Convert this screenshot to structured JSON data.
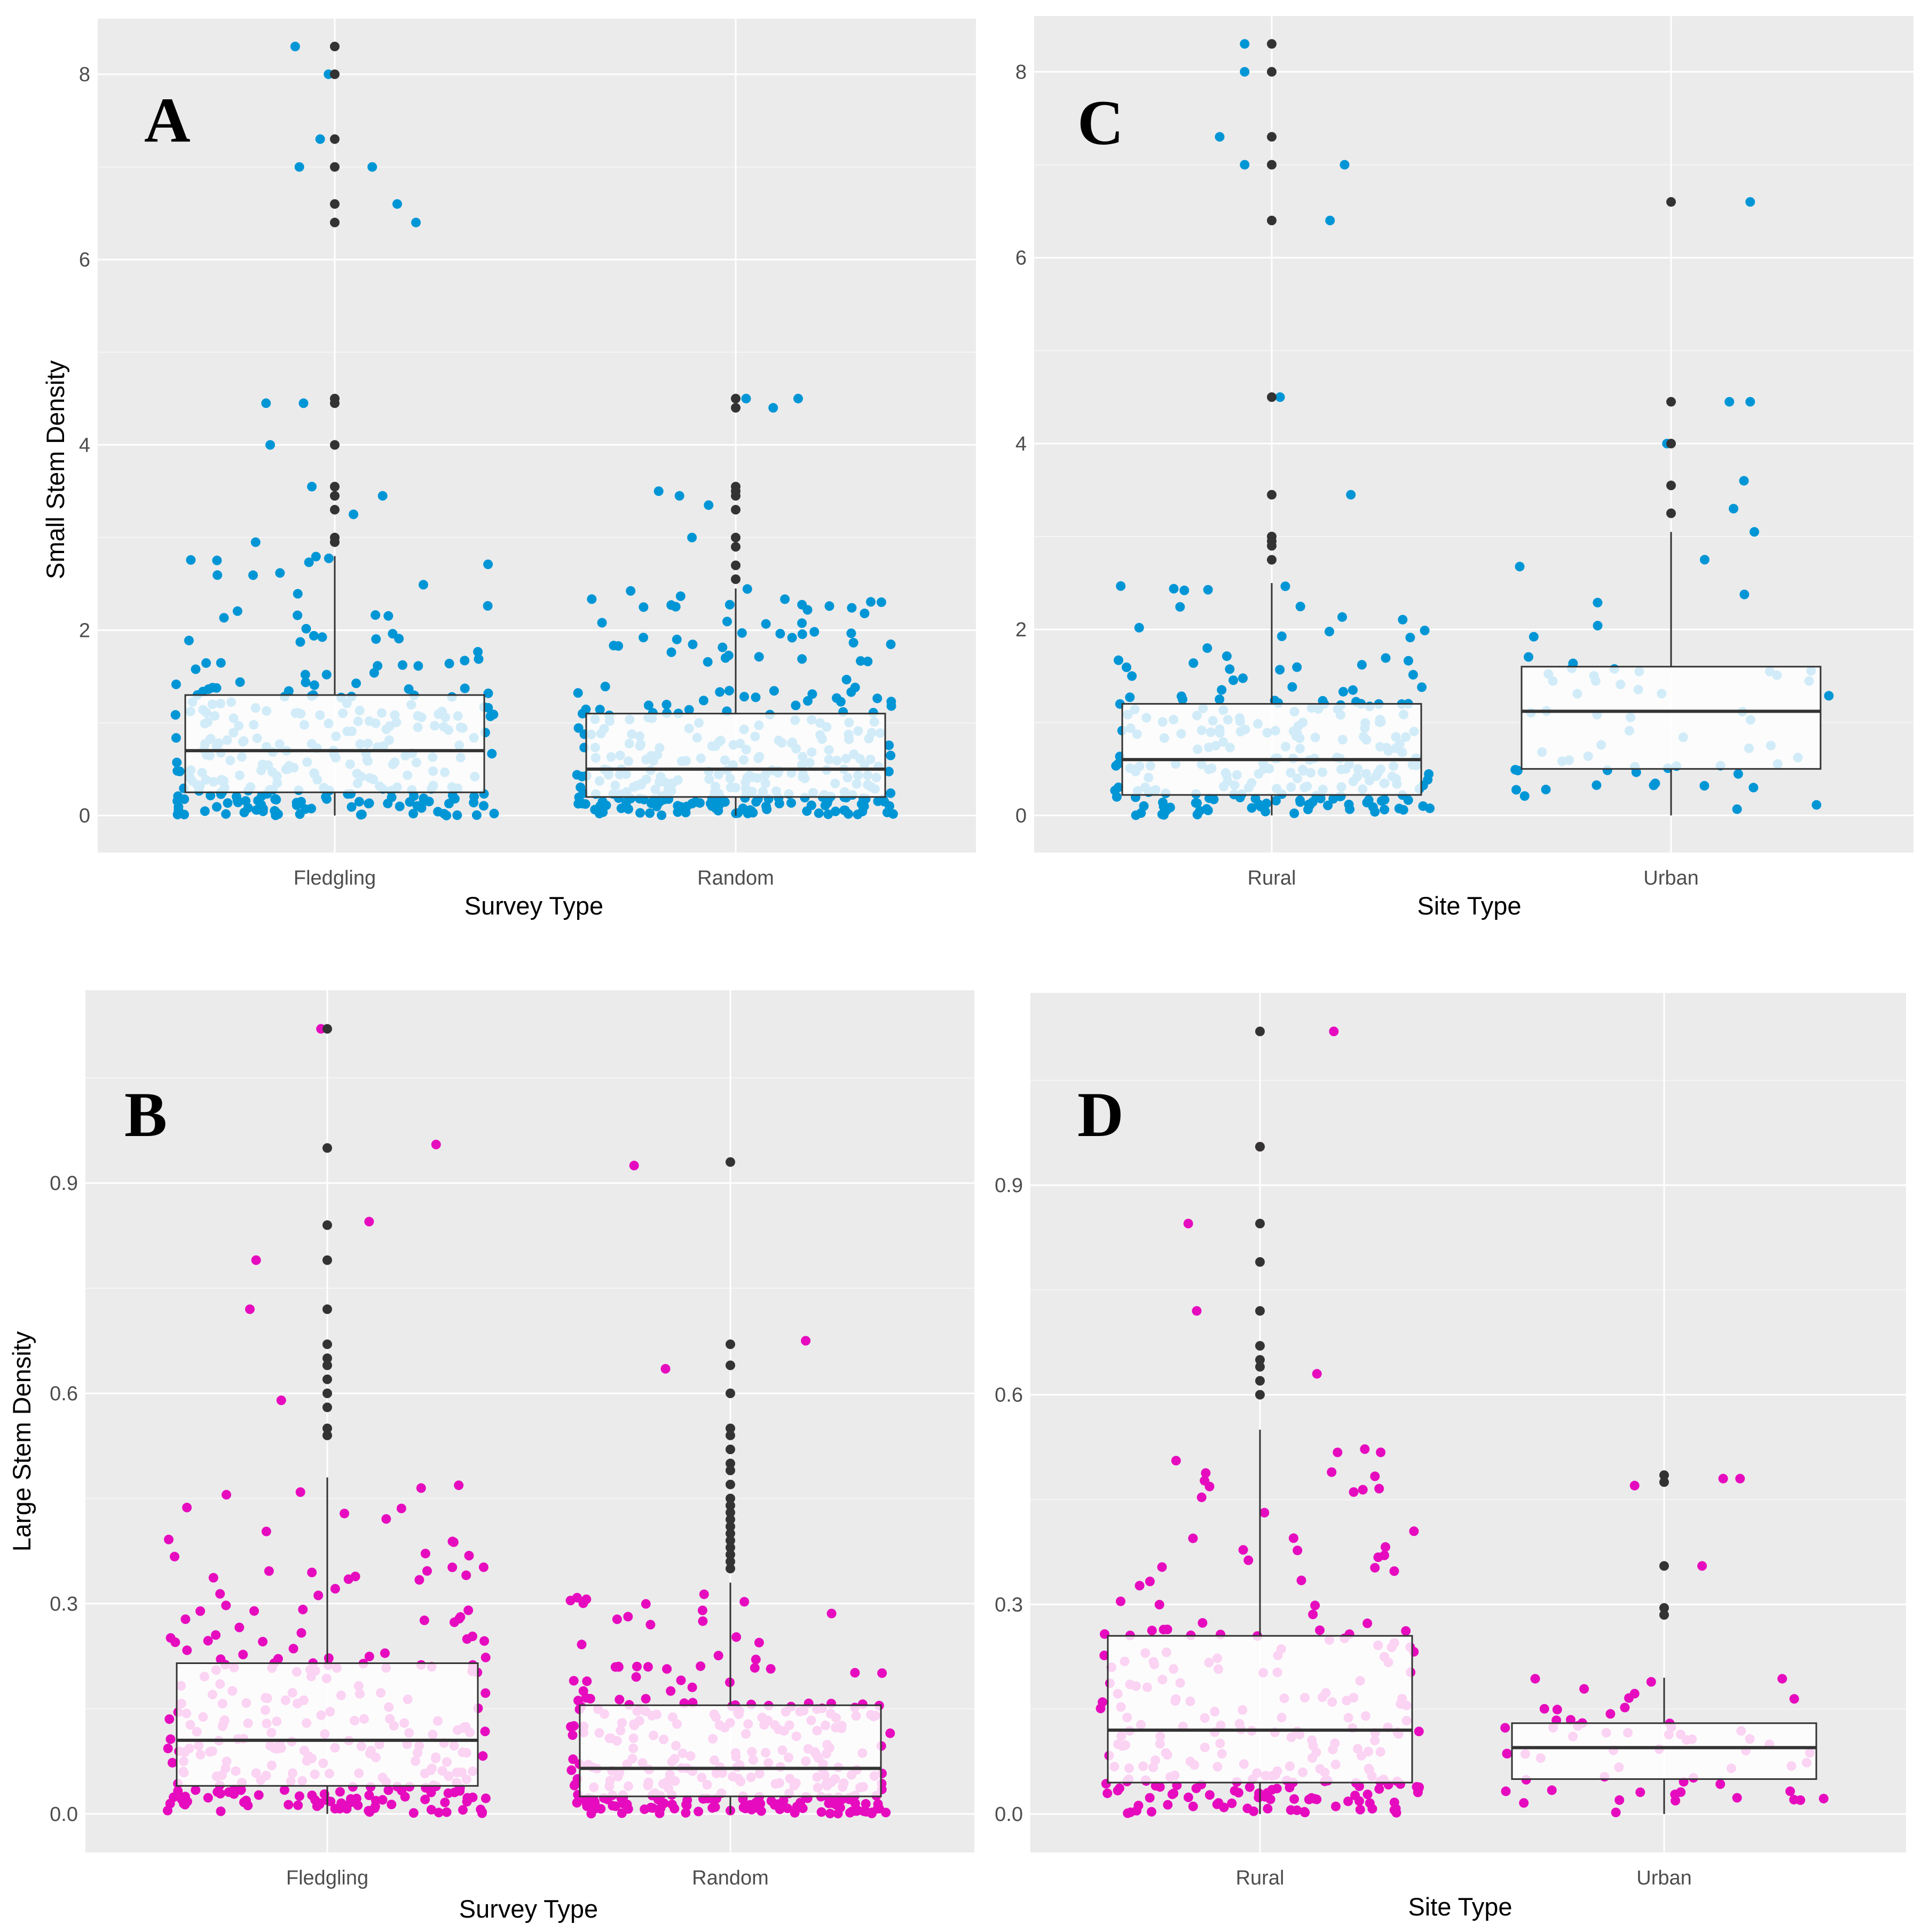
{
  "colors": {
    "panel_bg": "#EBEBEB",
    "grid_major": "#FFFFFF",
    "grid_minor": "#F5F5F5",
    "small_stem_points": "#0096D6",
    "large_stem_points": "#E60BBE",
    "outlier_points": "#333333",
    "box_fill": "#FFFFFF",
    "box_line": "#333333"
  },
  "chart_data": [
    {
      "panel": "A",
      "type": "boxplot_with_jitter",
      "xlabel": "Survey Type",
      "ylabel": "Small Stem Density",
      "categories": [
        "Fledgling",
        "Random"
      ],
      "ylim": [
        -0.4,
        8.6
      ],
      "yticks": [
        0,
        2,
        4,
        6,
        8
      ],
      "ytick_labels": [
        "0",
        "2",
        "4",
        "6",
        "8"
      ],
      "point_color": "#0096D6",
      "n_points": [
        290,
        330
      ],
      "boxes": [
        {
          "category": "Fledgling",
          "q1": 0.25,
          "median": 0.7,
          "q3": 1.3,
          "whisker_low": 0.0,
          "whisker_high": 2.8,
          "outliers": [
            8.3,
            8.0,
            7.3,
            7.0,
            6.6,
            6.4,
            4.5,
            4.45,
            4.0,
            3.55,
            3.45,
            3.3,
            3.0,
            2.95
          ]
        },
        {
          "category": "Random",
          "q1": 0.2,
          "median": 0.5,
          "q3": 1.1,
          "whisker_low": 0.0,
          "whisker_high": 2.45,
          "outliers": [
            4.5,
            4.4,
            3.55,
            3.5,
            3.45,
            3.3,
            3.0,
            2.9,
            2.7,
            2.55
          ]
        }
      ],
      "extra_points": [
        {
          "category": "Fledgling",
          "offset": -0.19,
          "value": 8.3
        },
        {
          "category": "Fledgling",
          "offset": -0.03,
          "value": 8.0
        },
        {
          "category": "Fledgling",
          "offset": -0.07,
          "value": 7.3
        },
        {
          "category": "Fledgling",
          "offset": -0.17,
          "value": 7.0
        },
        {
          "category": "Fledgling",
          "offset": 0.18,
          "value": 7.0
        },
        {
          "category": "Fledgling",
          "offset": 0.3,
          "value": 6.6
        },
        {
          "category": "Fledgling",
          "offset": 0.39,
          "value": 6.4
        },
        {
          "category": "Fledgling",
          "offset": -0.33,
          "value": 4.45
        },
        {
          "category": "Fledgling",
          "offset": -0.15,
          "value": 4.45
        },
        {
          "category": "Fledgling",
          "offset": -0.31,
          "value": 4.0
        },
        {
          "category": "Fledgling",
          "offset": -0.11,
          "value": 3.55
        },
        {
          "category": "Fledgling",
          "offset": 0.23,
          "value": 3.45
        },
        {
          "category": "Fledgling",
          "offset": 0.09,
          "value": 3.25
        },
        {
          "category": "Fledgling",
          "offset": -0.38,
          "value": 2.95
        },
        {
          "category": "Random",
          "offset": 0.05,
          "value": 4.5
        },
        {
          "category": "Random",
          "offset": 0.18,
          "value": 4.4
        },
        {
          "category": "Random",
          "offset": 0.3,
          "value": 4.5
        },
        {
          "category": "Random",
          "offset": -0.37,
          "value": 3.5
        },
        {
          "category": "Random",
          "offset": -0.27,
          "value": 3.45
        },
        {
          "category": "Random",
          "offset": -0.13,
          "value": 3.35
        },
        {
          "category": "Random",
          "offset": -0.21,
          "value": 3.0
        }
      ]
    },
    {
      "panel": "B",
      "type": "boxplot_with_jitter",
      "xlabel": "Survey Type",
      "ylabel": "Large Stem Density",
      "categories": [
        "Fledgling",
        "Random"
      ],
      "ylim": [
        -0.055,
        1.175
      ],
      "yticks": [
        0,
        0.3,
        0.6,
        0.9
      ],
      "ytick_labels": [
        "0.0",
        "0.3",
        "0.6",
        "0.9"
      ],
      "point_color": "#E60BBE",
      "n_points": [
        290,
        330
      ],
      "boxes": [
        {
          "category": "Fledgling",
          "q1": 0.04,
          "median": 0.105,
          "q3": 0.215,
          "whisker_low": 0.0,
          "whisker_high": 0.48,
          "outliers": [
            1.12,
            0.95,
            0.84,
            0.79,
            0.72,
            0.67,
            0.65,
            0.64,
            0.62,
            0.6,
            0.58,
            0.55,
            0.54
          ]
        },
        {
          "category": "Random",
          "q1": 0.025,
          "median": 0.065,
          "q3": 0.155,
          "whisker_low": 0.0,
          "whisker_high": 0.33,
          "outliers": [
            0.93,
            0.67,
            0.64,
            0.6,
            0.55,
            0.54,
            0.52,
            0.5,
            0.49,
            0.47,
            0.45,
            0.44,
            0.43,
            0.42,
            0.41,
            0.4,
            0.39,
            0.38,
            0.37,
            0.36,
            0.35
          ]
        }
      ],
      "extra_points": [
        {
          "category": "Fledgling",
          "offset": -0.03,
          "value": 1.12
        },
        {
          "category": "Fledgling",
          "offset": 0.52,
          "value": 0.955
        },
        {
          "category": "Fledgling",
          "offset": 0.2,
          "value": 0.845
        },
        {
          "category": "Fledgling",
          "offset": -0.34,
          "value": 0.79
        },
        {
          "category": "Fledgling",
          "offset": -0.37,
          "value": 0.72
        },
        {
          "category": "Fledgling",
          "offset": -0.22,
          "value": 0.59
        },
        {
          "category": "Random",
          "offset": -0.46,
          "value": 0.925
        },
        {
          "category": "Random",
          "offset": 0.36,
          "value": 0.675
        },
        {
          "category": "Random",
          "offset": -0.31,
          "value": 0.635
        }
      ]
    },
    {
      "panel": "C",
      "type": "boxplot_with_jitter",
      "xlabel": "Site Type",
      "ylabel": "",
      "categories": [
        "Rural",
        "Urban"
      ],
      "ylim": [
        -0.4,
        8.6
      ],
      "yticks": [
        0,
        2,
        4,
        6,
        8
      ],
      "ytick_labels": [
        "0",
        "2",
        "4",
        "6",
        "8"
      ],
      "point_color": "#0096D6",
      "n_points": [
        250,
        60
      ],
      "boxes": [
        {
          "category": "Rural",
          "q1": 0.22,
          "median": 0.6,
          "q3": 1.2,
          "whisker_low": 0.0,
          "whisker_high": 2.5,
          "outliers": [
            8.3,
            8.0,
            7.3,
            7.0,
            6.4,
            4.5,
            3.45,
            3.0,
            2.95,
            2.9,
            2.75
          ]
        },
        {
          "category": "Urban",
          "q1": 0.5,
          "median": 1.12,
          "q3": 1.6,
          "whisker_low": 0.0,
          "whisker_high": 3.05,
          "outliers": [
            6.6,
            4.45,
            4.0,
            3.55,
            3.25
          ]
        }
      ],
      "extra_points": [
        {
          "category": "Rural",
          "offset": -0.13,
          "value": 8.3
        },
        {
          "category": "Rural",
          "offset": -0.13,
          "value": 8.0
        },
        {
          "category": "Rural",
          "offset": -0.25,
          "value": 7.3
        },
        {
          "category": "Rural",
          "offset": -0.13,
          "value": 7.0
        },
        {
          "category": "Rural",
          "offset": 0.35,
          "value": 7.0
        },
        {
          "category": "Rural",
          "offset": 0.28,
          "value": 6.4
        },
        {
          "category": "Rural",
          "offset": 0.04,
          "value": 4.5
        },
        {
          "category": "Rural",
          "offset": 0.38,
          "value": 3.45
        },
        {
          "category": "Urban",
          "offset": 0.38,
          "value": 6.6
        },
        {
          "category": "Urban",
          "offset": 0.28,
          "value": 4.45
        },
        {
          "category": "Urban",
          "offset": 0.38,
          "value": 4.45
        },
        {
          "category": "Urban",
          "offset": -0.02,
          "value": 4.0
        },
        {
          "category": "Urban",
          "offset": 0.35,
          "value": 3.6
        },
        {
          "category": "Urban",
          "offset": 0.4,
          "value": 3.05
        },
        {
          "category": "Urban",
          "offset": 0.3,
          "value": 3.3
        }
      ]
    },
    {
      "panel": "D",
      "type": "boxplot_with_jitter",
      "xlabel": "Site Type",
      "ylabel": "",
      "categories": [
        "Rural",
        "Urban"
      ],
      "ylim": [
        -0.055,
        1.175
      ],
      "yticks": [
        0,
        0.3,
        0.6,
        0.9
      ],
      "ytick_labels": [
        "0.0",
        "0.3",
        "0.6",
        "0.9"
      ],
      "point_color": "#E60BBE",
      "n_points": [
        250,
        60
      ],
      "boxes": [
        {
          "category": "Rural",
          "q1": 0.045,
          "median": 0.12,
          "q3": 0.255,
          "whisker_low": 0.0,
          "whisker_high": 0.55,
          "outliers": [
            1.12,
            0.955,
            0.845,
            0.79,
            0.72,
            0.67,
            0.65,
            0.64,
            0.62,
            0.6
          ]
        },
        {
          "category": "Urban",
          "q1": 0.05,
          "median": 0.095,
          "q3": 0.13,
          "whisker_low": 0.0,
          "whisker_high": 0.195,
          "outliers": [
            0.485,
            0.475,
            0.355,
            0.295,
            0.285
          ]
        }
      ],
      "extra_points": [
        {
          "category": "Rural",
          "offset": 0.35,
          "value": 1.12
        },
        {
          "category": "Rural",
          "offset": 0.0,
          "value": 0.955
        },
        {
          "category": "Rural",
          "offset": -0.34,
          "value": 0.845
        },
        {
          "category": "Rural",
          "offset": -0.3,
          "value": 0.72
        },
        {
          "category": "Rural",
          "offset": 0.27,
          "value": 0.63
        },
        {
          "category": "Urban",
          "offset": 0.36,
          "value": 0.48
        },
        {
          "category": "Urban",
          "offset": 0.28,
          "value": 0.48
        },
        {
          "category": "Urban",
          "offset": -0.14,
          "value": 0.47
        },
        {
          "category": "Urban",
          "offset": 0.18,
          "value": 0.355
        }
      ]
    }
  ]
}
